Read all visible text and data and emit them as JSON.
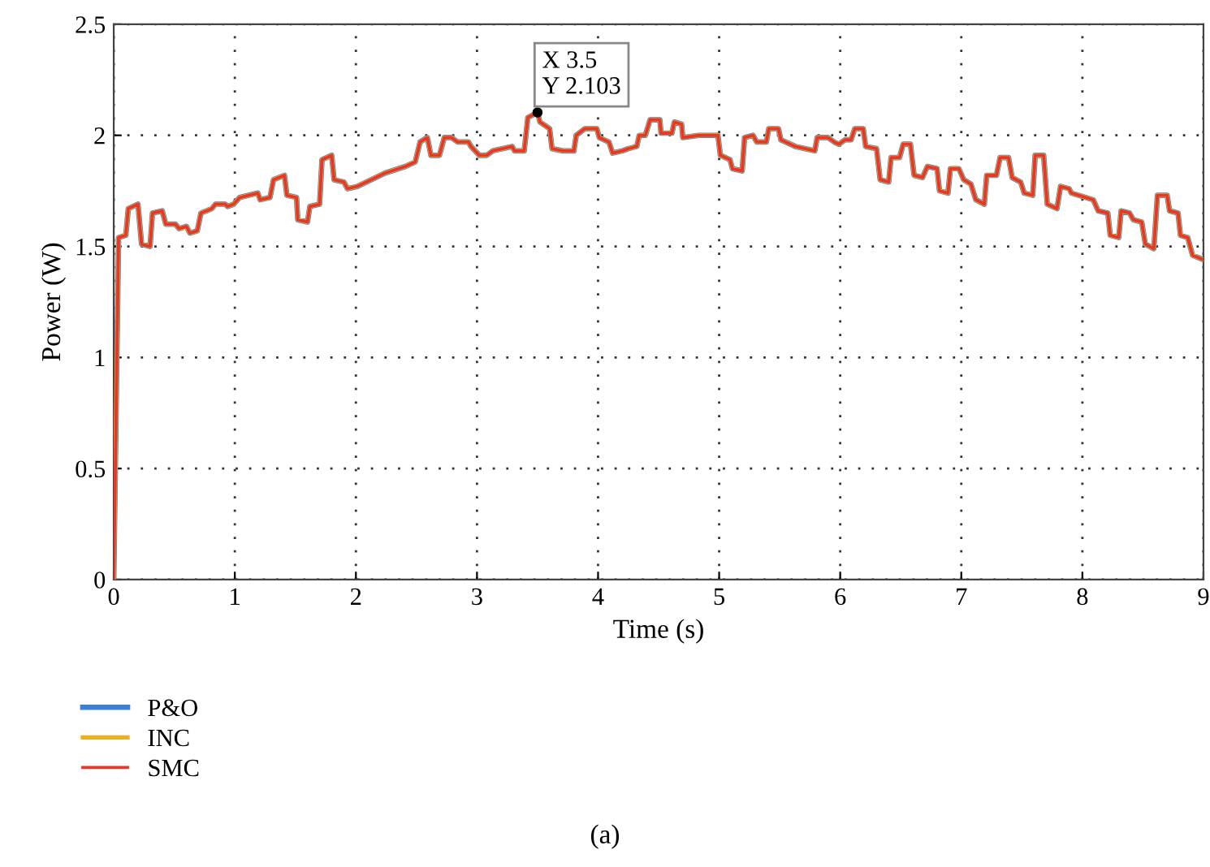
{
  "chart_data": {
    "type": "line",
    "xlabel": "Time (s)",
    "ylabel": "Power (W)",
    "x": [
      0,
      0.04,
      0.1,
      0.12,
      0.2,
      0.23,
      0.3,
      0.32,
      0.4,
      0.43,
      0.51,
      0.54,
      0.6,
      0.63,
      0.69,
      0.72,
      0.81,
      0.84,
      0.92,
      0.94,
      0.99,
      1.04,
      1.19,
      1.21,
      1.29,
      1.32,
      1.41,
      1.43,
      1.51,
      1.52,
      1.6,
      1.62,
      1.7,
      1.72,
      1.8,
      1.82,
      1.9,
      1.93,
      2.01,
      2.24,
      2.41,
      2.49,
      2.53,
      2.59,
      2.62,
      2.69,
      2.73,
      2.79,
      2.84,
      2.93,
      2.95,
      3.02,
      3.08,
      3.13,
      3.29,
      3.31,
      3.39,
      3.42,
      3.5,
      3.52,
      3.6,
      3.62,
      3.71,
      3.8,
      3.82,
      3.89,
      3.99,
      4.01,
      4.09,
      4.12,
      4.2,
      4.25,
      4.32,
      4.34,
      4.39,
      4.43,
      4.51,
      4.52,
      4.61,
      4.63,
      4.69,
      4.7,
      4.83,
      4.99,
      5.01,
      5.09,
      5.11,
      5.19,
      5.21,
      5.28,
      5.31,
      5.39,
      5.41,
      5.49,
      5.51,
      5.63,
      5.79,
      5.81,
      5.9,
      5.95,
      5.99,
      6.04,
      6.09,
      6.12,
      6.19,
      6.21,
      6.3,
      6.33,
      6.4,
      6.42,
      6.49,
      6.52,
      6.58,
      6.61,
      6.68,
      6.72,
      6.8,
      6.82,
      6.89,
      6.91,
      6.98,
      7.02,
      7.08,
      7.12,
      7.19,
      7.21,
      7.29,
      7.32,
      7.39,
      7.42,
      7.49,
      7.52,
      7.59,
      7.61,
      7.68,
      7.71,
      7.79,
      7.82,
      7.89,
      7.91,
      8.09,
      8.13,
      8.21,
      8.23,
      8.3,
      8.32,
      8.39,
      8.42,
      8.49,
      8.52,
      8.59,
      8.62,
      8.7,
      8.72,
      8.79,
      8.81,
      8.87,
      8.91,
      9.0
    ],
    "series": [
      {
        "name": "P&O",
        "color": "#3f7fd0",
        "values": [
          0,
          1.54,
          1.55,
          1.67,
          1.69,
          1.51,
          1.5,
          1.65,
          1.66,
          1.6,
          1.6,
          1.58,
          1.59,
          1.56,
          1.57,
          1.65,
          1.67,
          1.69,
          1.69,
          1.68,
          1.69,
          1.72,
          1.74,
          1.71,
          1.72,
          1.8,
          1.82,
          1.73,
          1.72,
          1.62,
          1.61,
          1.68,
          1.69,
          1.89,
          1.91,
          1.8,
          1.79,
          1.76,
          1.77,
          1.83,
          1.86,
          1.88,
          1.97,
          1.99,
          1.91,
          1.91,
          1.99,
          1.99,
          1.97,
          1.97,
          1.95,
          1.91,
          1.91,
          1.93,
          1.95,
          1.93,
          1.93,
          2.08,
          2.103,
          2.06,
          2.03,
          1.94,
          1.93,
          1.93,
          2.0,
          2.03,
          2.03,
          1.99,
          1.97,
          1.92,
          1.93,
          1.94,
          1.95,
          2.0,
          2.0,
          2.07,
          2.07,
          2.01,
          2.01,
          2.06,
          2.05,
          1.99,
          2.0,
          2.0,
          1.91,
          1.89,
          1.85,
          1.84,
          1.99,
          2.0,
          1.97,
          1.97,
          2.03,
          2.03,
          1.98,
          1.95,
          1.93,
          1.99,
          1.99,
          1.97,
          1.96,
          1.98,
          1.98,
          2.03,
          2.03,
          1.95,
          1.94,
          1.8,
          1.79,
          1.9,
          1.9,
          1.96,
          1.96,
          1.82,
          1.81,
          1.86,
          1.85,
          1.75,
          1.74,
          1.85,
          1.85,
          1.8,
          1.78,
          1.71,
          1.69,
          1.82,
          1.82,
          1.9,
          1.9,
          1.81,
          1.79,
          1.74,
          1.73,
          1.91,
          1.91,
          1.69,
          1.67,
          1.77,
          1.76,
          1.74,
          1.71,
          1.66,
          1.65,
          1.55,
          1.54,
          1.66,
          1.65,
          1.62,
          1.61,
          1.51,
          1.49,
          1.73,
          1.73,
          1.66,
          1.65,
          1.55,
          1.54,
          1.46,
          1.44
        ]
      },
      {
        "name": "INC",
        "color": "#edb120",
        "values": [
          0,
          1.54,
          1.55,
          1.67,
          1.69,
          1.51,
          1.5,
          1.65,
          1.66,
          1.6,
          1.6,
          1.58,
          1.59,
          1.56,
          1.57,
          1.65,
          1.67,
          1.69,
          1.69,
          1.68,
          1.69,
          1.72,
          1.74,
          1.71,
          1.72,
          1.8,
          1.82,
          1.73,
          1.72,
          1.62,
          1.61,
          1.68,
          1.69,
          1.89,
          1.91,
          1.8,
          1.79,
          1.76,
          1.77,
          1.83,
          1.86,
          1.88,
          1.97,
          1.99,
          1.91,
          1.91,
          1.99,
          1.99,
          1.97,
          1.97,
          1.95,
          1.91,
          1.91,
          1.93,
          1.95,
          1.93,
          1.93,
          2.08,
          2.103,
          2.06,
          2.03,
          1.94,
          1.93,
          1.93,
          2.0,
          2.03,
          2.03,
          1.99,
          1.97,
          1.92,
          1.93,
          1.94,
          1.95,
          2.0,
          2.0,
          2.07,
          2.07,
          2.01,
          2.01,
          2.06,
          2.05,
          1.99,
          2.0,
          2.0,
          1.91,
          1.89,
          1.85,
          1.84,
          1.99,
          2.0,
          1.97,
          1.97,
          2.03,
          2.03,
          1.98,
          1.95,
          1.93,
          1.99,
          1.99,
          1.97,
          1.96,
          1.98,
          1.98,
          2.03,
          2.03,
          1.95,
          1.94,
          1.8,
          1.79,
          1.9,
          1.9,
          1.96,
          1.96,
          1.82,
          1.81,
          1.86,
          1.85,
          1.75,
          1.74,
          1.85,
          1.85,
          1.8,
          1.78,
          1.71,
          1.69,
          1.82,
          1.82,
          1.9,
          1.9,
          1.81,
          1.79,
          1.74,
          1.73,
          1.91,
          1.91,
          1.69,
          1.67,
          1.77,
          1.76,
          1.74,
          1.71,
          1.66,
          1.65,
          1.55,
          1.54,
          1.66,
          1.65,
          1.62,
          1.61,
          1.51,
          1.49,
          1.73,
          1.73,
          1.66,
          1.65,
          1.55,
          1.54,
          1.46,
          1.44
        ]
      },
      {
        "name": "SMC",
        "color": "#e8372a",
        "values": [
          0,
          1.54,
          1.55,
          1.67,
          1.69,
          1.51,
          1.5,
          1.65,
          1.66,
          1.6,
          1.6,
          1.58,
          1.59,
          1.56,
          1.57,
          1.65,
          1.67,
          1.69,
          1.69,
          1.68,
          1.69,
          1.72,
          1.74,
          1.71,
          1.72,
          1.8,
          1.82,
          1.73,
          1.72,
          1.62,
          1.61,
          1.68,
          1.69,
          1.89,
          1.91,
          1.8,
          1.79,
          1.76,
          1.77,
          1.83,
          1.86,
          1.88,
          1.97,
          1.99,
          1.91,
          1.91,
          1.99,
          1.99,
          1.97,
          1.97,
          1.95,
          1.91,
          1.91,
          1.93,
          1.95,
          1.93,
          1.93,
          2.08,
          2.103,
          2.06,
          2.03,
          1.94,
          1.93,
          1.93,
          2.0,
          2.03,
          2.03,
          1.99,
          1.97,
          1.92,
          1.93,
          1.94,
          1.95,
          2.0,
          2.0,
          2.07,
          2.07,
          2.01,
          2.01,
          2.06,
          2.05,
          1.99,
          2.0,
          2.0,
          1.91,
          1.89,
          1.85,
          1.84,
          1.99,
          2.0,
          1.97,
          1.97,
          2.03,
          2.03,
          1.98,
          1.95,
          1.93,
          1.99,
          1.99,
          1.97,
          1.96,
          1.98,
          1.98,
          2.03,
          2.03,
          1.95,
          1.94,
          1.8,
          1.79,
          1.9,
          1.9,
          1.96,
          1.96,
          1.82,
          1.81,
          1.86,
          1.85,
          1.75,
          1.74,
          1.85,
          1.85,
          1.8,
          1.78,
          1.71,
          1.69,
          1.82,
          1.82,
          1.9,
          1.9,
          1.81,
          1.79,
          1.74,
          1.73,
          1.91,
          1.91,
          1.69,
          1.67,
          1.77,
          1.76,
          1.74,
          1.71,
          1.66,
          1.65,
          1.55,
          1.54,
          1.66,
          1.65,
          1.62,
          1.61,
          1.51,
          1.49,
          1.73,
          1.73,
          1.66,
          1.65,
          1.55,
          1.54,
          1.46,
          1.44
        ]
      }
    ],
    "xlim": [
      0,
      9
    ],
    "xticks": [
      0,
      1,
      2,
      3,
      4,
      5,
      6,
      7,
      8,
      9
    ],
    "ylim": [
      0,
      2.5
    ],
    "yticks": [
      0,
      0.5,
      1,
      1.5,
      2,
      2.5
    ],
    "grid": true,
    "legend": "bottom left",
    "line_style": "solid",
    "marker": "none",
    "annotations": [
      {
        "text": "X 3.5\nY 2.103",
        "x": 3.5,
        "y": 2.103
      },
      "(a)"
    ]
  }
}
